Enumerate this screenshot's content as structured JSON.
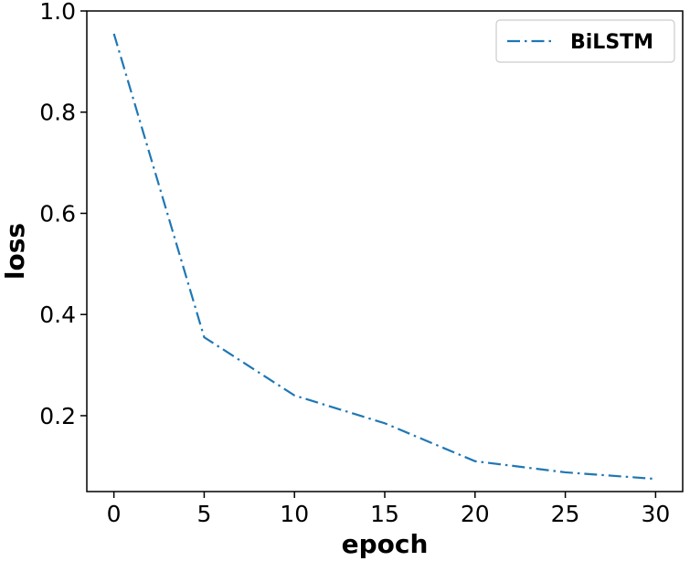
{
  "chart_data": {
    "type": "line",
    "xlabel": "epoch",
    "ylabel": "loss",
    "xlim": [
      -1.5,
      31.5
    ],
    "ylim": [
      0.05,
      1.0
    ],
    "xticks": [
      "0",
      "5",
      "10",
      "15",
      "20",
      "25",
      "30"
    ],
    "yticks": [
      "0.2",
      "0.4",
      "0.6",
      "0.8",
      "1.0"
    ],
    "grid": false,
    "legend_position": "top-right",
    "series": [
      {
        "name": "BiLSTM",
        "color": "#1f77b4",
        "linestyle": "dashdot",
        "x": [
          0,
          5,
          10,
          15,
          20,
          25,
          30
        ],
        "y": [
          0.955,
          0.355,
          0.24,
          0.185,
          0.11,
          0.088,
          0.075
        ]
      }
    ]
  }
}
